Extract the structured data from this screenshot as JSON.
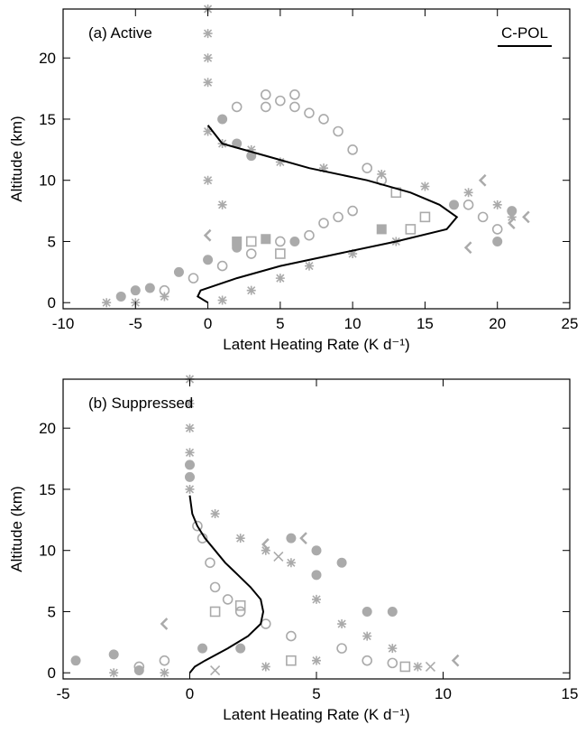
{
  "chart_data": [
    {
      "type": "scatter",
      "title": "(a) Active",
      "x_label": "Latent Heating Rate (K d⁻¹)",
      "y_label": "Altitude (km)",
      "xlim": [
        -10,
        25
      ],
      "xticks": [
        -10,
        -5,
        0,
        5,
        10,
        15,
        20,
        25
      ],
      "ylim": [
        -0.5,
        24
      ],
      "yticks": [
        0,
        5,
        10,
        15,
        20
      ],
      "legend": "top-right",
      "series": [
        {
          "marker": "circle-open",
          "color": "#aaaaaa",
          "x": [
            2,
            4,
            4,
            5,
            6,
            6,
            7,
            8,
            9,
            10,
            11,
            12,
            9,
            10,
            8,
            7,
            5,
            3,
            1,
            -1,
            -3,
            18,
            19,
            20
          ],
          "values": [
            16,
            17,
            16,
            16.5,
            17,
            16,
            15.5,
            15,
            14,
            12.5,
            11,
            10,
            7,
            7.5,
            6.5,
            5.5,
            5,
            4,
            3,
            2,
            1,
            8,
            7,
            6
          ]
        },
        {
          "marker": "circle",
          "color": "#aaaaaa",
          "x": [
            -5,
            -6,
            -4,
            -2,
            0,
            2,
            1,
            2,
            3,
            21,
            20,
            6,
            17
          ],
          "values": [
            1,
            0.5,
            1.2,
            2.5,
            3.5,
            4.5,
            15,
            13,
            12,
            7.5,
            5,
            5,
            8
          ]
        },
        {
          "marker": "square-open",
          "color": "#aaaaaa",
          "x": [
            3,
            5,
            14,
            15,
            13
          ],
          "values": [
            5,
            4,
            6,
            7,
            9
          ]
        },
        {
          "marker": "square",
          "color": "#aaaaaa",
          "x": [
            2,
            4,
            12
          ],
          "values": [
            5,
            5.2,
            6
          ]
        },
        {
          "marker": "asterisk",
          "color": "#aaaaaa",
          "x": [
            0,
            0,
            0,
            0,
            0,
            1,
            3,
            5,
            8,
            12,
            15,
            18,
            20,
            21,
            3,
            5,
            7,
            10,
            13,
            -5,
            -7,
            -3,
            1,
            0,
            1
          ],
          "values": [
            14,
            18,
            20,
            22,
            24,
            13,
            12.5,
            11.5,
            11,
            10.5,
            9.5,
            9,
            8,
            7,
            1,
            2,
            3,
            4,
            5,
            0,
            0,
            0.5,
            0.2,
            10,
            8
          ]
        },
        {
          "marker": "chevron",
          "color": "#aaaaaa",
          "x": [
            22,
            21,
            19,
            18,
            0
          ],
          "values": [
            7,
            6.5,
            10,
            4.5,
            5.5
          ]
        },
        {
          "name": "C-POL",
          "marker": "line",
          "color": "#000000",
          "x": [
            0,
            1,
            4,
            7,
            11,
            14,
            16,
            17.2,
            16.5,
            13,
            9,
            5,
            2,
            -0.5,
            -0.7,
            0
          ],
          "values": [
            14.5,
            13,
            12,
            11,
            10,
            9,
            8,
            7,
            6,
            5,
            4,
            3,
            2,
            1,
            0.5,
            0
          ]
        }
      ]
    },
    {
      "type": "scatter",
      "title": "(b) Suppressed",
      "x_label": "Latent Heating Rate (K d⁻¹)",
      "y_label": "Altitude (km)",
      "xlim": [
        -5,
        15
      ],
      "xticks": [
        -5,
        0,
        5,
        10,
        15
      ],
      "ylim": [
        -0.5,
        24
      ],
      "yticks": [
        0,
        5,
        10,
        15,
        20
      ],
      "series": [
        {
          "marker": "circle-open",
          "color": "#aaaaaa",
          "x": [
            0.3,
            0.5,
            0.8,
            1,
            1.5,
            2,
            3,
            4,
            6,
            -1,
            -2,
            7,
            8
          ],
          "values": [
            12,
            11,
            9,
            7,
            6,
            5,
            4,
            3,
            2,
            1,
            0.5,
            1,
            0.8
          ]
        },
        {
          "marker": "circle",
          "color": "#aaaaaa",
          "x": [
            -4.5,
            -3,
            -2,
            0,
            0,
            4,
            5,
            6,
            5,
            7,
            8,
            2,
            0.5
          ],
          "values": [
            1,
            1.5,
            0.2,
            17,
            16,
            11,
            10,
            9,
            8,
            5,
            5,
            2,
            2
          ]
        },
        {
          "marker": "square-open",
          "color": "#aaaaaa",
          "x": [
            1,
            2,
            8.5,
            4
          ],
          "values": [
            5,
            5.5,
            0.5,
            1
          ]
        },
        {
          "marker": "asterisk",
          "color": "#aaaaaa",
          "x": [
            0,
            0,
            0,
            0,
            0,
            1,
            2,
            3,
            4,
            5,
            6,
            7,
            8,
            5,
            -1,
            -3,
            3,
            9
          ],
          "values": [
            24,
            22,
            20,
            18,
            15,
            13,
            11,
            10,
            9,
            6,
            4,
            3,
            2,
            1,
            0,
            0,
            0.5,
            0.5
          ]
        },
        {
          "marker": "chevron",
          "color": "#aaaaaa",
          "x": [
            4.5,
            3,
            -1,
            10.5
          ],
          "values": [
            11,
            10.5,
            4,
            1
          ]
        },
        {
          "marker": "cross",
          "color": "#aaaaaa",
          "x": [
            9.5,
            1,
            3.5
          ],
          "values": [
            0.5,
            0.2,
            9.5
          ]
        },
        {
          "marker": "line",
          "color": "#000000",
          "x": [
            0,
            0.1,
            0.3,
            0.6,
            1,
            1.4,
            1.9,
            2.4,
            2.8,
            2.9,
            2.8,
            2.3,
            1.5,
            0.6,
            0.2,
            0
          ],
          "values": [
            14.5,
            13,
            12,
            11,
            10,
            9,
            8,
            7,
            6,
            5,
            4,
            3,
            2,
            1,
            0.5,
            0
          ]
        }
      ]
    }
  ]
}
